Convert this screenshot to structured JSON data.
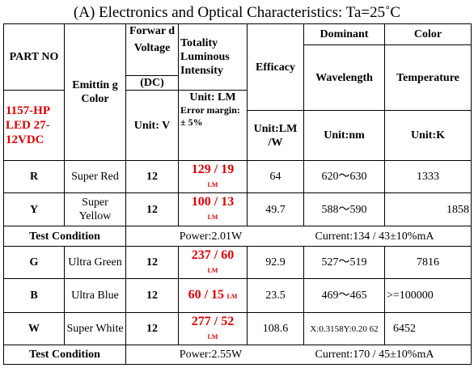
{
  "title": "(A) Electronics and Optical Characteristics: Ta=25˚C",
  "headers": {
    "part_no": "PART NO",
    "part_model": "1157-HP LED 27-12VDC",
    "emitting_color": "Emittin g Color",
    "forward_top": "Forwar d",
    "forward_voltage": "Voltage",
    "forward_dc": "(DC)",
    "forward_unit": "Unit: V",
    "lum_title": "Totality Luminous Intensity",
    "lum_unit": "Unit: LM",
    "lum_error": "Error margin: ± 5%",
    "efficacy": "Efficacy",
    "efficacy_unit": "Unit:LM /W",
    "dominant_top": "Dominant",
    "dominant_wavelength": "Wavelength",
    "dominant_unit": "Unit:nm",
    "color_top": "Color",
    "color_temperature": "Temperature",
    "color_unit": "Unit:K"
  },
  "group1": [
    {
      "part": "R",
      "color": "Super Red",
      "voltage": "12",
      "lum": "129 / 19",
      "lum_unit": "LM",
      "efficacy": "64",
      "wavelength": "620～630",
      "temperature": "1333"
    },
    {
      "part": "Y",
      "color": "Super Yellow",
      "voltage": "12",
      "lum": "100 / 13",
      "lum_unit": "LM",
      "efficacy": "49.7",
      "wavelength": "588～590",
      "temperature": "1858"
    }
  ],
  "test1": {
    "label": "Test Condition",
    "power": "Power:2.01W",
    "current": "Current:134 / 43±10%mA"
  },
  "group2": [
    {
      "part": "G",
      "color": "Ultra Green",
      "voltage": "12",
      "lum": "237 / 60",
      "lum_unit": "LM",
      "efficacy": "92.9",
      "wavelength": "527～519",
      "temperature": "7816"
    },
    {
      "part": "B",
      "color": "Ultra Blue",
      "voltage": "12",
      "lum": "60 / 15",
      "lum_unit": "LM",
      "efficacy": "23.5",
      "wavelength": "469～465",
      "temperature": ">=100000"
    },
    {
      "part": "W",
      "color": "Super White",
      "voltage": "12",
      "lum": "277 / 52",
      "lum_unit": "LM",
      "efficacy": "108.6",
      "wavelength": "X:0.3158Y:0.20 62",
      "temperature": "6452"
    }
  ],
  "test2": {
    "label": "Test Condition",
    "power": "Power:2.55W",
    "current": "Current:170 / 45±10%mA"
  }
}
